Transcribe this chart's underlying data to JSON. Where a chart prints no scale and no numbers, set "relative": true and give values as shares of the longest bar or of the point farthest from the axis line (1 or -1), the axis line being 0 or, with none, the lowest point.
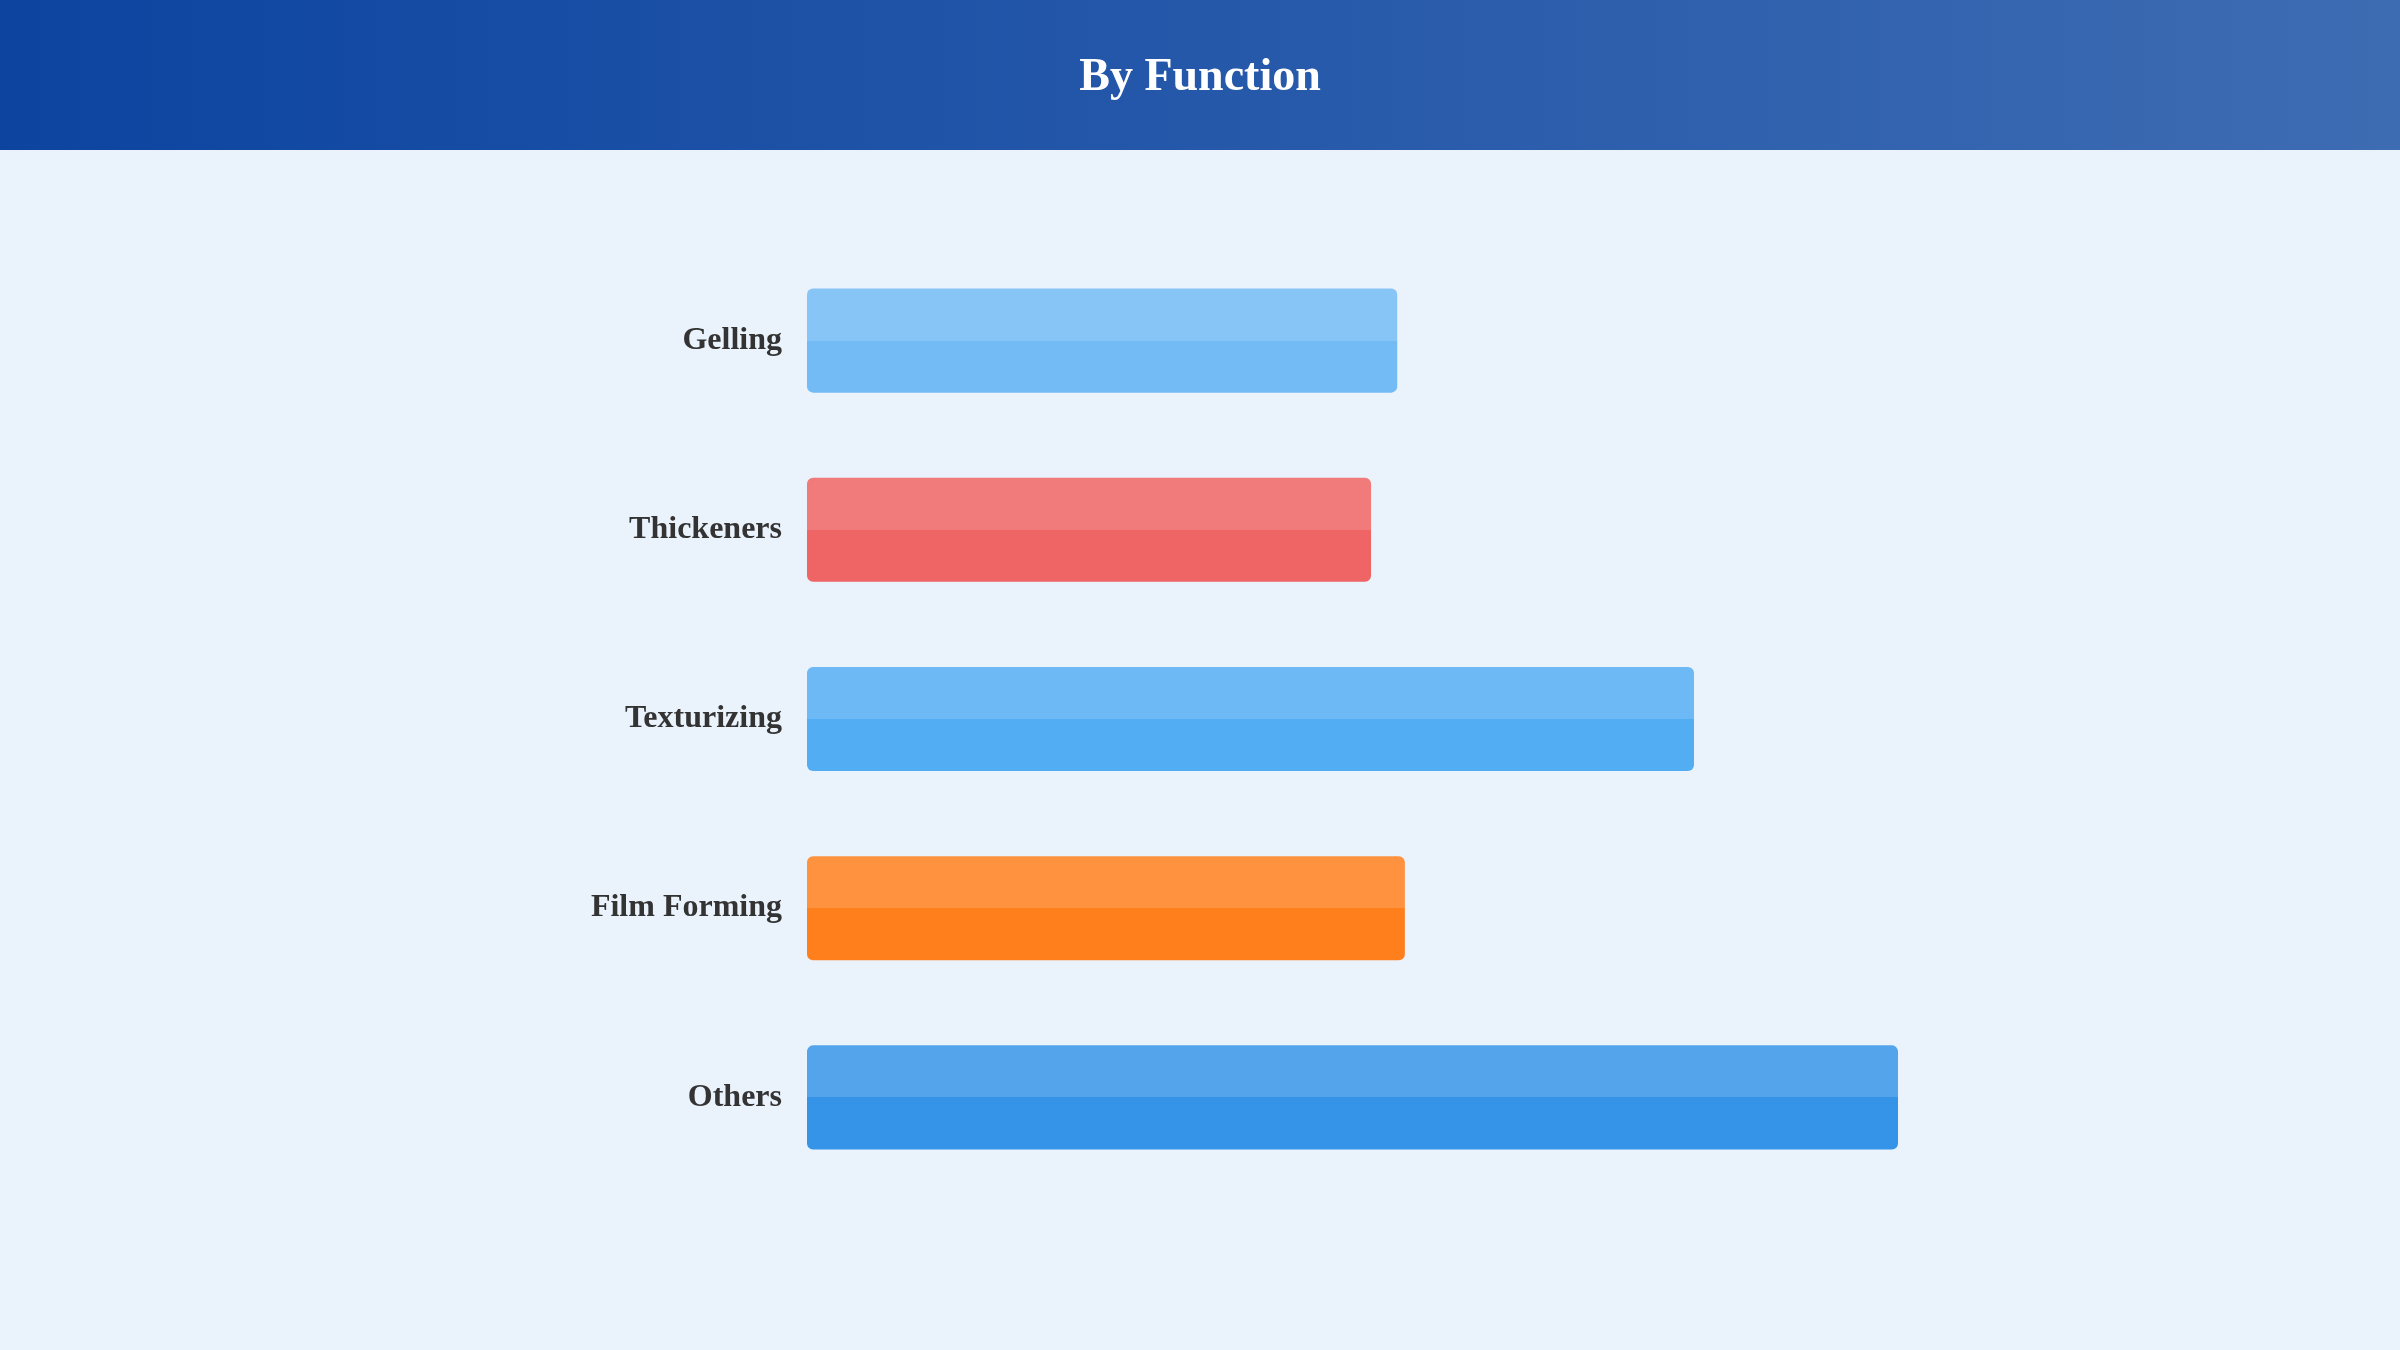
{
  "chart_data": {
    "type": "bar",
    "title": "By Function",
    "orientation": "horizontal",
    "relative": true,
    "categories": [
      "Gelling",
      "Thickeners",
      "Texturizing",
      "Film Forming",
      "Others"
    ],
    "values": [
      0.541,
      0.517,
      0.813,
      0.548,
      1
    ],
    "colors": [
      "#73bbf5",
      "#ef6464",
      "#52adf3",
      "#ff7f1c",
      "#3594e8"
    ]
  }
}
